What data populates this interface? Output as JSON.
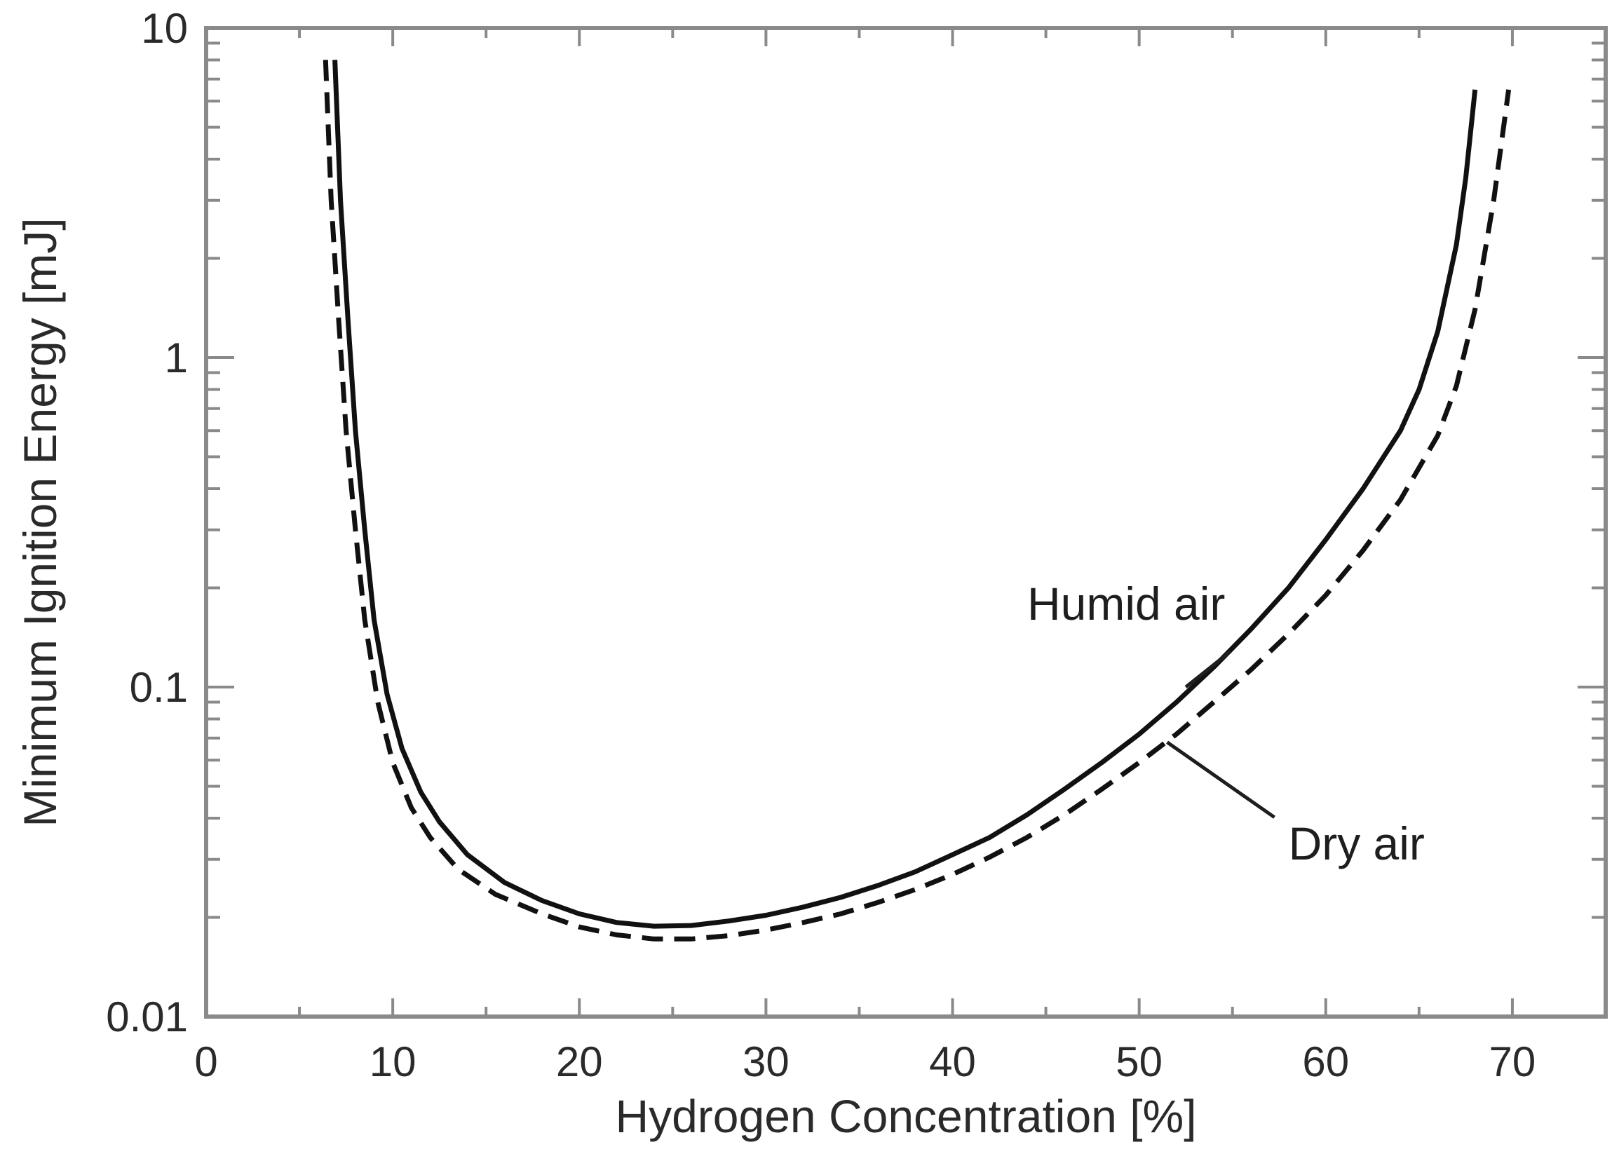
{
  "chart_data": {
    "type": "line",
    "xlabel": "Hydrogen Concentration [%]",
    "ylabel": "Minimum Ignition Energy [mJ]",
    "xlim": [
      0,
      75
    ],
    "ylim": [
      0.01,
      10
    ],
    "yscale": "log",
    "grid": false,
    "x_ticks": [
      0,
      10,
      20,
      30,
      40,
      50,
      60,
      70
    ],
    "x_tick_labels": [
      "0",
      "10",
      "20",
      "30",
      "40",
      "50",
      "60",
      "70"
    ],
    "y_ticks": [
      0.01,
      0.1,
      1,
      10
    ],
    "y_tick_labels": [
      "0.01",
      "0.1",
      "1",
      "10"
    ],
    "series": [
      {
        "name": "Humid air",
        "style": "solid",
        "color": "#111111",
        "x": [
          6.9,
          7.2,
          7.6,
          8.0,
          8.5,
          9.0,
          9.7,
          10.5,
          11.5,
          12.5,
          14,
          16,
          18,
          20,
          22,
          24,
          26,
          28,
          30,
          32,
          34,
          36,
          38,
          40,
          42,
          44,
          46,
          48,
          50,
          52,
          54,
          56,
          58,
          60,
          62,
          64,
          65,
          66,
          67,
          67.5,
          68
        ],
        "y": [
          8.0,
          3.0,
          1.3,
          0.6,
          0.3,
          0.16,
          0.095,
          0.065,
          0.048,
          0.039,
          0.031,
          0.0255,
          0.0225,
          0.0205,
          0.0193,
          0.0188,
          0.0189,
          0.0195,
          0.0203,
          0.0215,
          0.023,
          0.025,
          0.0275,
          0.031,
          0.035,
          0.041,
          0.049,
          0.059,
          0.072,
          0.09,
          0.115,
          0.15,
          0.2,
          0.28,
          0.4,
          0.6,
          0.8,
          1.2,
          2.2,
          3.5,
          6.5
        ]
      },
      {
        "name": "Dry air",
        "style": "dashed",
        "color": "#111111",
        "x": [
          6.4,
          6.7,
          7.1,
          7.5,
          8.0,
          8.5,
          9.2,
          10.0,
          11.0,
          12.0,
          13.5,
          15.5,
          18,
          20,
          22,
          24,
          26,
          28,
          30,
          32,
          34,
          36,
          38,
          40,
          42,
          44,
          46,
          48,
          50,
          52,
          54,
          56,
          58,
          60,
          62,
          64,
          66,
          67,
          68,
          69,
          69.8
        ],
        "y": [
          8.0,
          3.0,
          1.3,
          0.6,
          0.3,
          0.16,
          0.09,
          0.059,
          0.043,
          0.035,
          0.028,
          0.0235,
          0.0205,
          0.0187,
          0.0177,
          0.0172,
          0.0172,
          0.0176,
          0.0183,
          0.0193,
          0.0205,
          0.0222,
          0.0243,
          0.027,
          0.0305,
          0.035,
          0.041,
          0.049,
          0.059,
          0.072,
          0.09,
          0.113,
          0.145,
          0.19,
          0.26,
          0.37,
          0.58,
          0.82,
          1.4,
          3.0,
          6.5
        ]
      }
    ],
    "annotations": [
      {
        "text": "Humid air",
        "label_at": [
          44,
          0.16
        ],
        "points_to": [
          52.5,
          0.1
        ]
      },
      {
        "text": "Dry air",
        "label_at": [
          58,
          0.03
        ],
        "points_to": [
          51.5,
          0.068
        ]
      }
    ]
  }
}
